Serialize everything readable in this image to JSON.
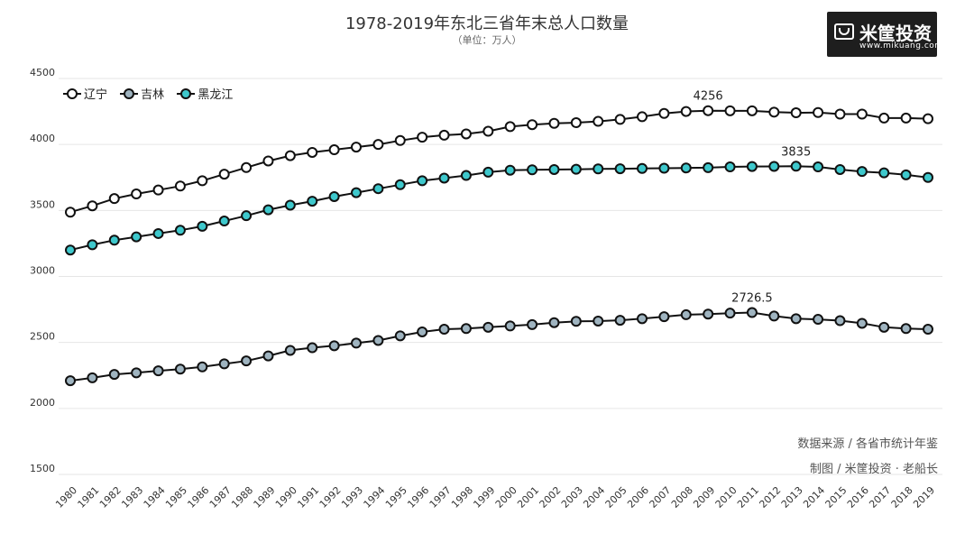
{
  "header": {
    "title": "1978-2019年东北三省年末总人口数量",
    "subtitle": "（单位：万人）"
  },
  "logo": {
    "name": "米筐投资",
    "url": "www.mikuang.com"
  },
  "notes": {
    "source": "数据来源 / 各省市统计年鉴",
    "credit": "制图 / 米筐投资 · 老船长"
  },
  "colors": {
    "line": "#111111",
    "grid": "#e6e6e6",
    "series": [
      "#ffffff",
      "#9fb4c0",
      "#3ec8cc"
    ]
  },
  "chart_data": {
    "type": "line",
    "title": "1978-2019年东北三省年末总人口数量",
    "subtitle": "（单位：万人）",
    "xlabel": "",
    "ylabel": "",
    "ylim": [
      1500,
      4500
    ],
    "yticks": [
      1500,
      2000,
      2500,
      3000,
      3500,
      4000,
      4500
    ],
    "grid": true,
    "legend_position": "top-left",
    "x": [
      "1980",
      "1981",
      "1982",
      "1983",
      "1984",
      "1985",
      "1986",
      "1987",
      "1988",
      "1989",
      "1990",
      "1991",
      "1992",
      "1993",
      "1994",
      "1995",
      "1996",
      "1997",
      "1998",
      "1999",
      "2000",
      "2001",
      "2002",
      "2003",
      "2004",
      "2005",
      "2006",
      "2007",
      "2008",
      "2009",
      "2010",
      "2011",
      "2012",
      "2013",
      "2014",
      "2015",
      "2016",
      "2017",
      "2018",
      "2019"
    ],
    "series": [
      {
        "name": "辽宁",
        "values": [
          3487,
          3535,
          3590,
          3625,
          3655,
          3685,
          3725,
          3775,
          3825,
          3875,
          3915,
          3940,
          3960,
          3980,
          4000,
          4030,
          4055,
          4070,
          4080,
          4100,
          4135,
          4150,
          4160,
          4165,
          4175,
          4190,
          4210,
          4235,
          4250,
          4256,
          4255,
          4255,
          4245,
          4240,
          4242,
          4230,
          4230,
          4200,
          4200,
          4195
        ],
        "labels": {
          "2009": "4256"
        }
      },
      {
        "name": "吉林",
        "values": [
          2210,
          2232,
          2258,
          2270,
          2285,
          2298,
          2315,
          2338,
          2360,
          2398,
          2440,
          2460,
          2475,
          2495,
          2515,
          2550,
          2580,
          2600,
          2605,
          2615,
          2625,
          2635,
          2650,
          2660,
          2662,
          2668,
          2680,
          2695,
          2710,
          2715,
          2722,
          2726.5,
          2700,
          2680,
          2675,
          2665,
          2645,
          2615,
          2605,
          2600
        ],
        "labels": {
          "2011": "2726.5"
        }
      },
      {
        "name": "黑龙江",
        "values": [
          3200,
          3240,
          3275,
          3300,
          3325,
          3350,
          3380,
          3420,
          3460,
          3505,
          3540,
          3570,
          3605,
          3635,
          3665,
          3695,
          3725,
          3745,
          3765,
          3790,
          3805,
          3808,
          3810,
          3812,
          3815,
          3816,
          3818,
          3820,
          3822,
          3824,
          3830,
          3833,
          3834,
          3835,
          3830,
          3810,
          3795,
          3785,
          3770,
          3750
        ],
        "labels": {
          "2013": "3835"
        }
      }
    ]
  }
}
